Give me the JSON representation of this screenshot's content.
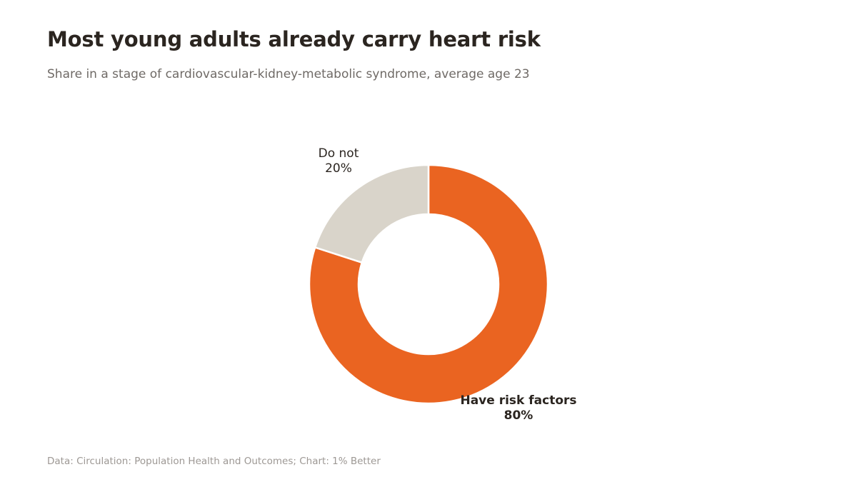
{
  "header": {
    "title": "Most young adults already carry heart risk",
    "subtitle": "Share in a stage of cardiovascular-kidney-metabolic syndrome, average age 23"
  },
  "chart_data": {
    "type": "pie",
    "variant": "donut",
    "title": "Most young adults already carry heart risk",
    "subtitle": "Share in a stage of cardiovascular-kidney-metabolic syndrome, average age 23",
    "slices": [
      {
        "label": "Have risk factors",
        "value": 80,
        "value_label": "80%",
        "color": "#ea6421",
        "label_emphasis": "bold"
      },
      {
        "label": "Do not",
        "value": 20,
        "value_label": "20%",
        "color": "#d9d4ca",
        "label_emphasis": "regular"
      }
    ],
    "start": "top",
    "direction": "clockwise",
    "legend": "none"
  },
  "footer": {
    "source": "Data: Circulation: Population Health and Outcomes; Chart: 1% Better"
  }
}
